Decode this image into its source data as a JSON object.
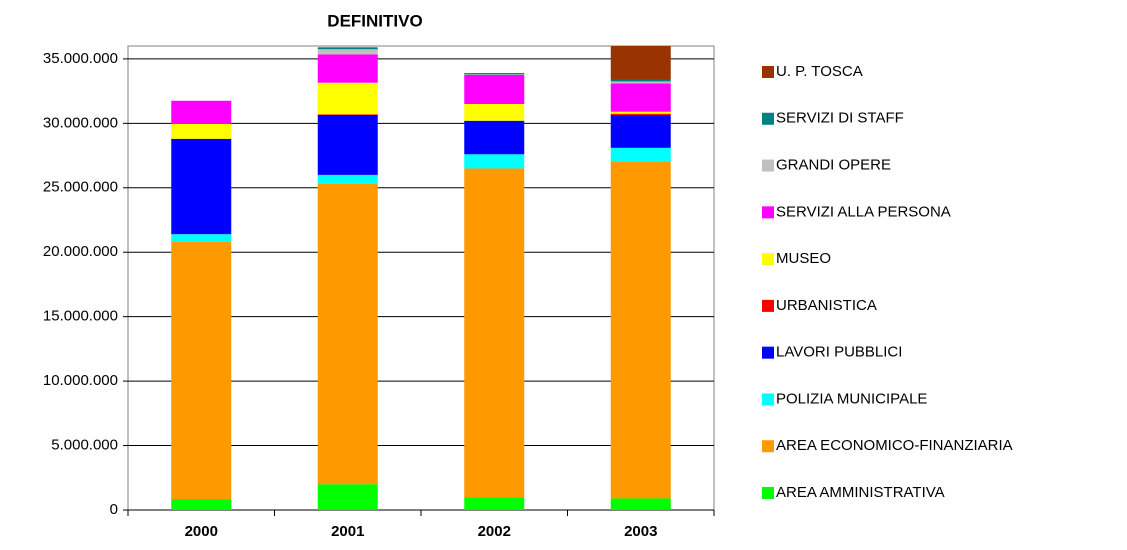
{
  "chart_data": {
    "type": "stacked_bar",
    "title": "DEFINITIVO",
    "categories": [
      "2000",
      "2001",
      "2002",
      "2003"
    ],
    "series": [
      {
        "name": "AREA AMMINISTRATIVA",
        "color": "#00ff00",
        "values": [
          850000,
          2000000,
          1000000,
          900000
        ]
      },
      {
        "name": "AREA ECONOMICO-FINANZIARIA",
        "color": "#ff9900",
        "values": [
          19950000,
          23300000,
          25500000,
          26100000
        ]
      },
      {
        "name": "POLIZIA MUNICIPALE",
        "color": "#00ffff",
        "values": [
          600000,
          700000,
          1100000,
          1100000
        ]
      },
      {
        "name": "LAVORI PUBBLICI",
        "color": "#0000ff",
        "values": [
          7400000,
          4650000,
          2600000,
          2550000
        ]
      },
      {
        "name": "URBANISTICA",
        "color": "#ff0000",
        "values": [
          0,
          50000,
          0,
          100000
        ]
      },
      {
        "name": "MUSEO",
        "color": "#ffff00",
        "values": [
          1150000,
          2450000,
          1300000,
          150000
        ]
      },
      {
        "name": "SERVIZI ALLA PERSONA",
        "color": "#ff00ff",
        "values": [
          1800000,
          2200000,
          2250000,
          2200000
        ]
      },
      {
        "name": "GRANDI OPERE",
        "color": "#c0c0c0",
        "values": [
          0,
          400000,
          50000,
          150000
        ]
      },
      {
        "name": "SERVIZI DI STAFF",
        "color": "#008080",
        "values": [
          0,
          150000,
          100000,
          150000
        ]
      },
      {
        "name": "U. P. TOSCA",
        "color": "#993300",
        "values": [
          0,
          0,
          0,
          2600000
        ]
      }
    ],
    "ylim": [
      0,
      36000000
    ],
    "yticks": [
      0,
      {
        "value": 5000000,
        "label": "5.000.000"
      },
      {
        "value": 10000000,
        "label": "10.000.000"
      },
      {
        "value": 15000000,
        "label": "15.000.000"
      },
      {
        "value": 20000000,
        "label": "20.000.000"
      },
      {
        "value": 25000000,
        "label": "25.000.000"
      },
      {
        "value": 30000000,
        "label": "30.000.000"
      },
      {
        "value": 35000000,
        "label": "35.000.000"
      }
    ],
    "grid": true,
    "legend": "right"
  }
}
